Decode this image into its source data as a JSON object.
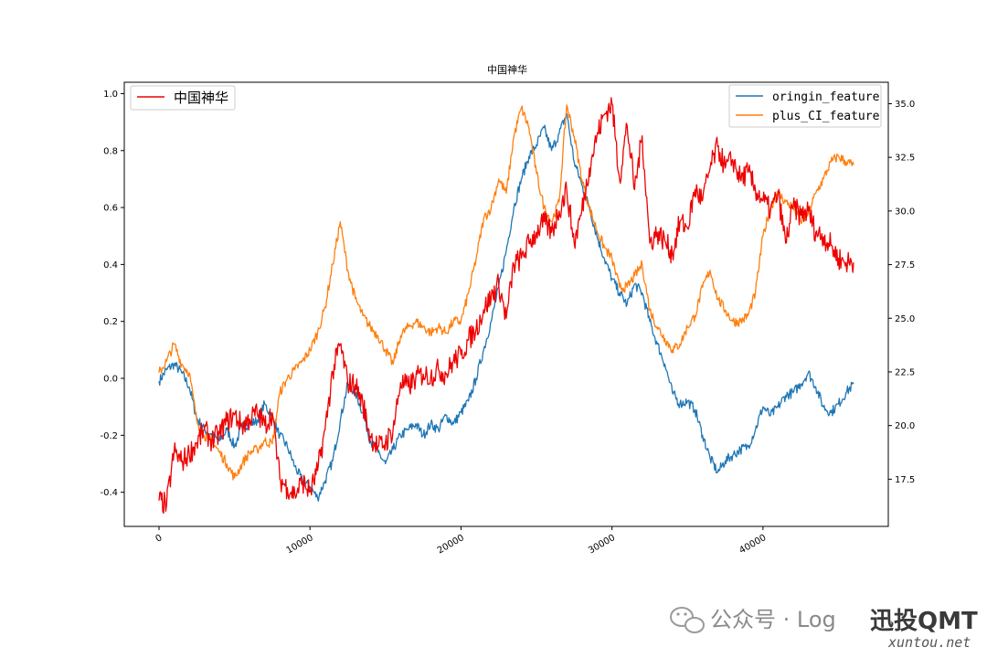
{
  "chart_data": {
    "type": "line",
    "title": "中国神华",
    "xlabel": "",
    "ylabel_left": "",
    "ylabel_right": "",
    "xlim": [
      -2300,
      48300
    ],
    "x_ticks": [
      0,
      10000,
      20000,
      30000,
      40000
    ],
    "x_tick_labels": [
      "0",
      "10000",
      "20000",
      "30000",
      "40000"
    ],
    "left_axis": {
      "ylim": [
        -0.52,
        1.04
      ],
      "ticks": [
        -0.4,
        -0.2,
        0.0,
        0.2,
        0.4,
        0.6,
        0.8,
        1.0
      ],
      "tick_labels": [
        "-0.4",
        "-0.2",
        "0.0",
        "0.2",
        "0.4",
        "0.6",
        "0.8",
        "1.0"
      ]
    },
    "right_axis": {
      "ylim": [
        15.3,
        36.0
      ],
      "ticks": [
        17.5,
        20.0,
        22.5,
        25.0,
        27.5,
        30.0,
        32.5,
        35.0
      ],
      "tick_labels": [
        "17.5",
        "20.0",
        "22.5",
        "25.0",
        "27.5",
        "30.0",
        "32.5",
        "35.0"
      ]
    },
    "legend_left": {
      "placement": "upper-left",
      "entries": [
        "中国神华"
      ]
    },
    "legend_right": {
      "placement": "upper-right",
      "entries": [
        "oringin_feature",
        "plus_CI_feature"
      ]
    },
    "grid": false,
    "series": [
      {
        "name": "oringin_feature",
        "axis": "left",
        "color": "#1f77b4",
        "x": [
          0,
          500,
          1000,
          1500,
          2000,
          2500,
          3000,
          3500,
          4000,
          4500,
          5000,
          5500,
          6000,
          6500,
          7000,
          7500,
          8000,
          8500,
          9000,
          9500,
          10000,
          10500,
          11000,
          11500,
          12000,
          12500,
          13000,
          13500,
          14000,
          14500,
          15000,
          15500,
          16000,
          16500,
          17000,
          17500,
          18000,
          18500,
          19000,
          19500,
          20000,
          20500,
          21000,
          21500,
          22000,
          22500,
          23000,
          23500,
          24000,
          24500,
          25000,
          25500,
          26000,
          26500,
          27000,
          27500,
          28000,
          28500,
          29000,
          29500,
          30000,
          30500,
          31000,
          31500,
          32000,
          32500,
          33000,
          33500,
          34000,
          34500,
          35000,
          35500,
          36000,
          36500,
          37000,
          37500,
          38000,
          38500,
          39000,
          39500,
          40000,
          40500,
          41000,
          41500,
          42000,
          42500,
          43000,
          43500,
          44000,
          44500,
          45000,
          45500,
          46000
        ],
        "y": [
          -0.01,
          0.03,
          0.05,
          0.02,
          -0.03,
          -0.14,
          -0.18,
          -0.2,
          -0.22,
          -0.18,
          -0.24,
          -0.17,
          -0.16,
          -0.15,
          -0.09,
          -0.14,
          -0.2,
          -0.24,
          -0.31,
          -0.36,
          -0.38,
          -0.42,
          -0.36,
          -0.29,
          -0.15,
          -0.02,
          -0.05,
          -0.12,
          -0.22,
          -0.26,
          -0.3,
          -0.25,
          -0.2,
          -0.18,
          -0.16,
          -0.2,
          -0.16,
          -0.18,
          -0.13,
          -0.16,
          -0.12,
          -0.08,
          0.0,
          0.1,
          0.2,
          0.32,
          0.45,
          0.6,
          0.7,
          0.78,
          0.82,
          0.88,
          0.8,
          0.86,
          0.93,
          0.76,
          0.68,
          0.6,
          0.5,
          0.42,
          0.35,
          0.3,
          0.26,
          0.33,
          0.3,
          0.2,
          0.12,
          0.05,
          -0.05,
          -0.09,
          -0.08,
          -0.11,
          -0.2,
          -0.28,
          -0.33,
          -0.29,
          -0.27,
          -0.25,
          -0.24,
          -0.18,
          -0.1,
          -0.13,
          -0.1,
          -0.06,
          -0.05,
          -0.02,
          0.02,
          -0.03,
          -0.1,
          -0.12,
          -0.09,
          -0.05,
          -0.02
        ]
      },
      {
        "name": "plus_CI_feature",
        "axis": "left",
        "color": "#ff7f0e",
        "x": [
          0,
          500,
          1000,
          1500,
          2000,
          2500,
          3000,
          3500,
          4000,
          4500,
          5000,
          5500,
          6000,
          6500,
          7000,
          7500,
          8000,
          8500,
          9000,
          9500,
          10000,
          10500,
          11000,
          11500,
          12000,
          12500,
          13000,
          13500,
          14000,
          14500,
          15000,
          15500,
          16000,
          16500,
          17000,
          17500,
          18000,
          18500,
          19000,
          19500,
          20000,
          20500,
          21000,
          21500,
          22000,
          22500,
          23000,
          23500,
          24000,
          24500,
          25000,
          25500,
          26000,
          26500,
          27000,
          27500,
          28000,
          28500,
          29000,
          29500,
          30000,
          30500,
          31000,
          31500,
          32000,
          32500,
          33000,
          33500,
          34000,
          34500,
          35000,
          35500,
          36000,
          36500,
          37000,
          37500,
          38000,
          38500,
          39000,
          39500,
          40000,
          40500,
          41000,
          41500,
          42000,
          42500,
          43000,
          43500,
          44000,
          44500,
          45000,
          45500,
          46000
        ],
        "y": [
          0.02,
          0.06,
          0.12,
          0.05,
          0.02,
          -0.15,
          -0.2,
          -0.22,
          -0.26,
          -0.3,
          -0.35,
          -0.3,
          -0.26,
          -0.25,
          -0.22,
          -0.23,
          -0.05,
          0.0,
          0.03,
          0.06,
          0.1,
          0.16,
          0.25,
          0.4,
          0.55,
          0.38,
          0.28,
          0.22,
          0.18,
          0.15,
          0.1,
          0.05,
          0.15,
          0.18,
          0.2,
          0.18,
          0.16,
          0.18,
          0.16,
          0.2,
          0.2,
          0.3,
          0.42,
          0.56,
          0.6,
          0.7,
          0.65,
          0.85,
          0.95,
          0.88,
          0.72,
          0.6,
          0.55,
          0.62,
          0.96,
          0.85,
          0.7,
          0.6,
          0.52,
          0.46,
          0.42,
          0.32,
          0.32,
          0.36,
          0.4,
          0.24,
          0.18,
          0.14,
          0.1,
          0.12,
          0.18,
          0.22,
          0.32,
          0.38,
          0.28,
          0.24,
          0.2,
          0.2,
          0.22,
          0.3,
          0.5,
          0.6,
          0.65,
          0.62,
          0.6,
          0.55,
          0.58,
          0.65,
          0.7,
          0.76,
          0.78,
          0.76,
          0.75
        ]
      },
      {
        "name": "中国神华",
        "axis": "right",
        "color": "#ee0000",
        "x": [
          0,
          500,
          1000,
          1500,
          2000,
          2500,
          3000,
          3500,
          4000,
          4500,
          5000,
          5500,
          6000,
          6500,
          7000,
          7500,
          8000,
          8500,
          9000,
          9500,
          10000,
          10500,
          11000,
          11500,
          12000,
          12500,
          13000,
          13500,
          14000,
          14500,
          15000,
          15500,
          16000,
          16500,
          17000,
          17500,
          18000,
          18500,
          19000,
          19500,
          20000,
          20500,
          21000,
          21500,
          22000,
          22500,
          23000,
          23500,
          24000,
          24500,
          25000,
          25500,
          26000,
          26500,
          27000,
          27500,
          28000,
          28500,
          29000,
          29500,
          30000,
          30500,
          31000,
          31500,
          32000,
          32500,
          33000,
          33500,
          34000,
          34500,
          35000,
          35500,
          36000,
          36500,
          37000,
          37500,
          38000,
          38500,
          39000,
          39500,
          40000,
          40500,
          41000,
          41500,
          42000,
          42500,
          43000,
          43500,
          44000,
          44500,
          45000,
          45500,
          46000
        ],
        "y": [
          16.5,
          16.3,
          18.8,
          18.3,
          18.7,
          19.2,
          19.8,
          19.3,
          19.6,
          20.2,
          20.5,
          20.0,
          20.3,
          20.6,
          20.0,
          20.6,
          17.5,
          17.1,
          16.8,
          17.4,
          16.9,
          17.9,
          19.8,
          22.5,
          23.8,
          22.0,
          21.9,
          21.0,
          19.5,
          19.0,
          19.2,
          19.8,
          22.0,
          21.8,
          22.2,
          22.4,
          22.3,
          22.6,
          22.4,
          23.0,
          23.3,
          24.0,
          24.5,
          25.4,
          26.0,
          26.6,
          25.0,
          27.5,
          27.8,
          28.5,
          29.0,
          29.5,
          29.0,
          30.0,
          31.0,
          28.5,
          30.0,
          32.0,
          33.5,
          34.5,
          35.0,
          31.5,
          34.0,
          31.0,
          33.5,
          28.5,
          29.0,
          28.6,
          28.0,
          29.5,
          29.2,
          31.0,
          30.5,
          32.0,
          33.0,
          32.0,
          32.4,
          31.5,
          31.8,
          31.0,
          30.5,
          30.0,
          30.8,
          28.5,
          30.2,
          29.8,
          30.0,
          29.0,
          28.8,
          28.4,
          27.8,
          27.6,
          27.6
        ]
      }
    ]
  },
  "watermark": {
    "account_text": "公众号 · Log",
    "brand_text": "迅投QMT",
    "site_text": "xuntou.net"
  }
}
